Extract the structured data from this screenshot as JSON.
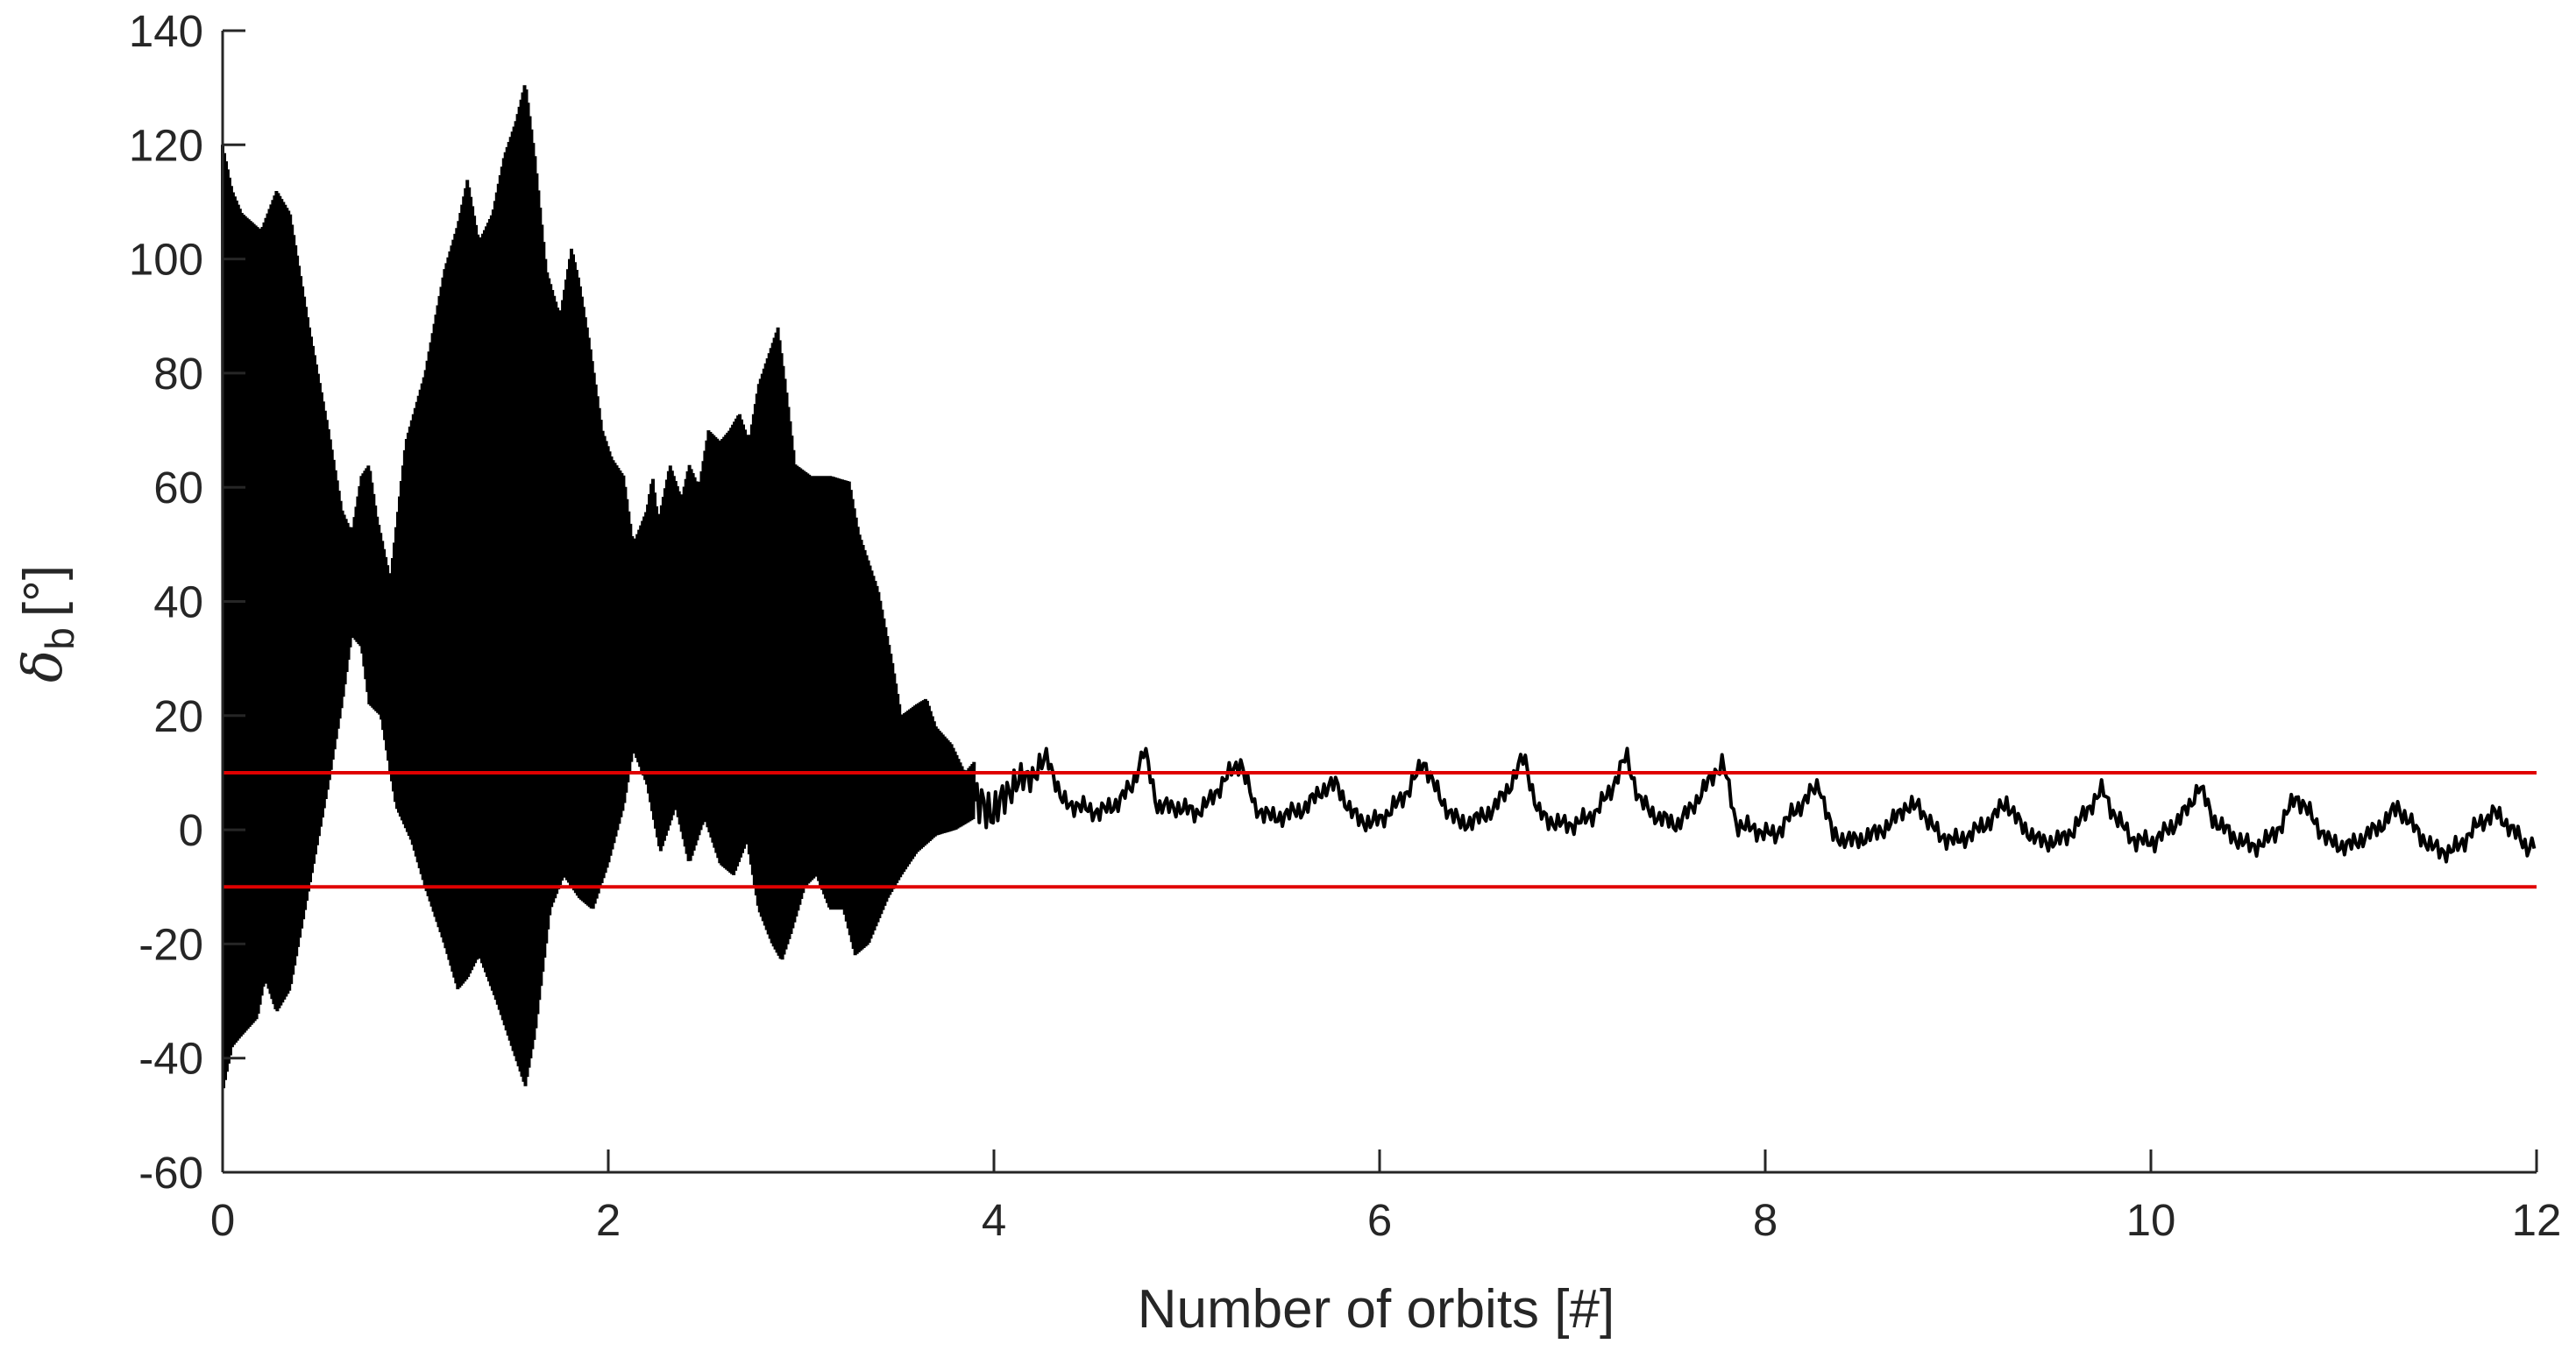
{
  "chart_data": {
    "type": "line",
    "title": "",
    "xlabel": "Number of orbits [#]",
    "ylabel": {
      "symbol": "δ",
      "subscript": "b",
      "unit": "[°]"
    },
    "xlim": [
      0,
      12
    ],
    "ylim": [
      -60,
      140
    ],
    "xticks": [
      "0",
      "2",
      "4",
      "6",
      "8",
      "10",
      "12"
    ],
    "yticks": [
      "-60",
      "-40",
      "-20",
      "0",
      "20",
      "40",
      "60",
      "80",
      "100",
      "120",
      "140"
    ],
    "grid": false,
    "colors": {
      "series": "#000000",
      "threshold": "#e00000",
      "axis": "#262626"
    },
    "series": [
      {
        "style": "oscillating-envelope",
        "envelope_upper": [
          [
            0.0,
            120
          ],
          [
            0.05,
            112
          ],
          [
            0.1,
            108
          ],
          [
            0.2,
            105
          ],
          [
            0.28,
            112
          ],
          [
            0.35,
            108
          ],
          [
            0.45,
            88
          ],
          [
            0.55,
            70
          ],
          [
            0.62,
            56
          ],
          [
            0.67,
            52
          ],
          [
            0.72,
            62
          ],
          [
            0.76,
            64
          ],
          [
            0.8,
            55
          ],
          [
            0.87,
            44
          ],
          [
            0.95,
            68
          ],
          [
            1.05,
            80
          ],
          [
            1.15,
            98
          ],
          [
            1.22,
            106
          ],
          [
            1.27,
            114
          ],
          [
            1.33,
            103
          ],
          [
            1.4,
            108
          ],
          [
            1.46,
            118
          ],
          [
            1.52,
            124
          ],
          [
            1.57,
            131
          ],
          [
            1.62,
            118
          ],
          [
            1.68,
            98
          ],
          [
            1.75,
            90
          ],
          [
            1.81,
            102
          ],
          [
            1.85,
            96
          ],
          [
            1.9,
            86
          ],
          [
            1.97,
            70
          ],
          [
            2.02,
            65
          ],
          [
            2.08,
            62
          ],
          [
            2.13,
            50
          ],
          [
            2.2,
            56
          ],
          [
            2.23,
            62
          ],
          [
            2.26,
            54
          ],
          [
            2.32,
            64
          ],
          [
            2.38,
            58
          ],
          [
            2.42,
            64
          ],
          [
            2.47,
            60
          ],
          [
            2.52,
            70
          ],
          [
            2.58,
            68
          ],
          [
            2.63,
            70
          ],
          [
            2.68,
            73
          ],
          [
            2.73,
            68
          ],
          [
            2.78,
            78
          ],
          [
            2.84,
            84
          ],
          [
            2.88,
            88
          ],
          [
            2.92,
            78
          ],
          [
            2.97,
            64
          ],
          [
            3.05,
            62
          ],
          [
            3.15,
            62
          ],
          [
            3.25,
            61
          ],
          [
            3.3,
            52
          ],
          [
            3.4,
            42
          ],
          [
            3.47,
            30
          ],
          [
            3.52,
            20
          ],
          [
            3.6,
            22
          ],
          [
            3.65,
            23
          ],
          [
            3.7,
            18
          ],
          [
            3.78,
            15
          ],
          [
            3.85,
            10
          ],
          [
            3.9,
            12
          ]
        ],
        "envelope_lower": [
          [
            0.0,
            -46
          ],
          [
            0.05,
            -38
          ],
          [
            0.1,
            -36
          ],
          [
            0.18,
            -33
          ],
          [
            0.22,
            -26
          ],
          [
            0.28,
            -32
          ],
          [
            0.35,
            -28
          ],
          [
            0.45,
            -10
          ],
          [
            0.55,
            8
          ],
          [
            0.62,
            22
          ],
          [
            0.67,
            34
          ],
          [
            0.72,
            32
          ],
          [
            0.76,
            22
          ],
          [
            0.82,
            20
          ],
          [
            0.9,
            4
          ],
          [
            0.98,
            -2
          ],
          [
            1.05,
            -10
          ],
          [
            1.15,
            -20
          ],
          [
            1.22,
            -28
          ],
          [
            1.27,
            -26
          ],
          [
            1.33,
            -22
          ],
          [
            1.42,
            -30
          ],
          [
            1.5,
            -38
          ],
          [
            1.57,
            -45
          ],
          [
            1.62,
            -36
          ],
          [
            1.7,
            -14
          ],
          [
            1.77,
            -8
          ],
          [
            1.85,
            -12
          ],
          [
            1.92,
            -14
          ],
          [
            2.0,
            -6
          ],
          [
            2.08,
            4
          ],
          [
            2.13,
            14
          ],
          [
            2.2,
            8
          ],
          [
            2.27,
            -4
          ],
          [
            2.35,
            4
          ],
          [
            2.42,
            -6
          ],
          [
            2.5,
            2
          ],
          [
            2.58,
            -6
          ],
          [
            2.65,
            -8
          ],
          [
            2.72,
            -2
          ],
          [
            2.78,
            -14
          ],
          [
            2.85,
            -20
          ],
          [
            2.9,
            -23
          ],
          [
            2.95,
            -18
          ],
          [
            3.02,
            -10
          ],
          [
            3.08,
            -8
          ],
          [
            3.15,
            -14
          ],
          [
            3.22,
            -14
          ],
          [
            3.28,
            -22
          ],
          [
            3.35,
            -20
          ],
          [
            3.45,
            -12
          ],
          [
            3.52,
            -8
          ],
          [
            3.6,
            -4
          ],
          [
            3.7,
            -1
          ],
          [
            3.8,
            0
          ],
          [
            3.9,
            2
          ]
        ],
        "trace": [
          [
            3.9,
            5
          ],
          [
            4.0,
            3
          ],
          [
            4.1,
            8
          ],
          [
            4.22,
            10
          ],
          [
            4.28,
            13
          ],
          [
            4.35,
            5
          ],
          [
            4.45,
            4
          ],
          [
            4.55,
            3
          ],
          [
            4.65,
            5
          ],
          [
            4.72,
            8
          ],
          [
            4.78,
            14
          ],
          [
            4.85,
            4
          ],
          [
            4.95,
            4
          ],
          [
            5.05,
            3
          ],
          [
            5.12,
            5
          ],
          [
            5.2,
            9
          ],
          [
            5.28,
            12
          ],
          [
            5.35,
            4
          ],
          [
            5.45,
            2
          ],
          [
            5.55,
            3
          ],
          [
            5.62,
            4
          ],
          [
            5.7,
            7
          ],
          [
            5.78,
            8
          ],
          [
            5.85,
            3
          ],
          [
            5.95,
            1
          ],
          [
            6.05,
            3
          ],
          [
            6.15,
            7
          ],
          [
            6.23,
            12
          ],
          [
            6.32,
            5
          ],
          [
            6.42,
            1
          ],
          [
            6.52,
            2
          ],
          [
            6.6,
            4
          ],
          [
            6.68,
            8
          ],
          [
            6.75,
            13
          ],
          [
            6.82,
            3
          ],
          [
            6.92,
            1
          ],
          [
            7.02,
            1
          ],
          [
            7.12,
            3
          ],
          [
            7.2,
            7
          ],
          [
            7.28,
            13
          ],
          [
            7.35,
            5
          ],
          [
            7.45,
            2
          ],
          [
            7.55,
            1
          ],
          [
            7.62,
            4
          ],
          [
            7.7,
            8
          ],
          [
            7.78,
            12
          ],
          [
            7.85,
            1
          ],
          [
            7.95,
            0
          ],
          [
            8.05,
            -1
          ],
          [
            8.12,
            2
          ],
          [
            8.2,
            5
          ],
          [
            8.28,
            8
          ],
          [
            8.35,
            -1
          ],
          [
            8.45,
            -2
          ],
          [
            8.55,
            -1
          ],
          [
            8.65,
            1
          ],
          [
            8.72,
            4
          ],
          [
            8.8,
            4
          ],
          [
            8.9,
            -1
          ],
          [
            9.0,
            -2
          ],
          [
            9.1,
            0
          ],
          [
            9.18,
            2
          ],
          [
            9.25,
            5
          ],
          [
            9.32,
            1
          ],
          [
            9.42,
            -2
          ],
          [
            9.52,
            -2
          ],
          [
            9.6,
            0
          ],
          [
            9.68,
            4
          ],
          [
            9.75,
            7
          ],
          [
            9.82,
            2
          ],
          [
            9.92,
            -2
          ],
          [
            10.02,
            -2
          ],
          [
            10.12,
            1
          ],
          [
            10.2,
            4
          ],
          [
            10.25,
            8
          ],
          [
            10.32,
            2
          ],
          [
            10.42,
            -1
          ],
          [
            10.52,
            -3
          ],
          [
            10.6,
            -2
          ],
          [
            10.68,
            1
          ],
          [
            10.75,
            6
          ],
          [
            10.82,
            3
          ],
          [
            10.92,
            -2
          ],
          [
            11.02,
            -3
          ],
          [
            11.12,
            -1
          ],
          [
            11.2,
            1
          ],
          [
            11.28,
            4
          ],
          [
            11.35,
            1
          ],
          [
            11.45,
            -3
          ],
          [
            11.55,
            -4
          ],
          [
            11.62,
            -2
          ],
          [
            11.7,
            1
          ],
          [
            11.78,
            3
          ],
          [
            11.85,
            1
          ],
          [
            11.95,
            -3
          ],
          [
            12.0,
            -2
          ]
        ]
      }
    ],
    "reference_lines": [
      {
        "y": 10,
        "color": "#e00000"
      },
      {
        "y": -10,
        "color": "#e00000"
      }
    ]
  }
}
